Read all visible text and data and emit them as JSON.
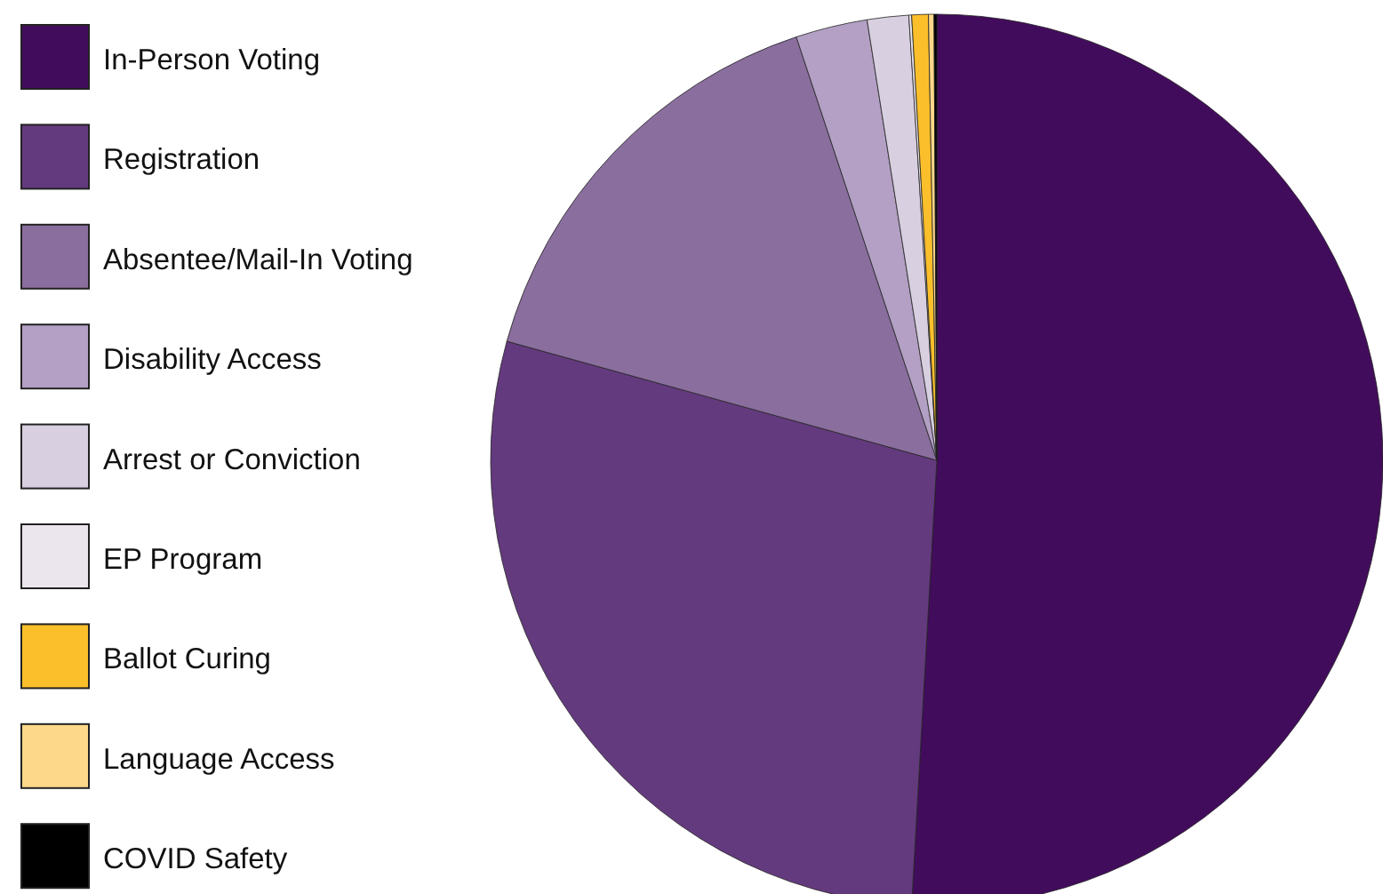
{
  "chart_data": {
    "type": "pie",
    "legend": "left",
    "categories": [
      "In-Person Voting",
      "Registration",
      "Absentee/Mail-In Voting",
      "Disability Access",
      "Arrest or Conviction",
      "EP Program",
      "Ballot Curing",
      "Language Access",
      "COVID Safety"
    ],
    "values": [
      50.9,
      28.4,
      15.6,
      2.6,
      1.5,
      0.1,
      0.6,
      0.2,
      0.1
    ],
    "colors": [
      "#420c5c",
      "#643a7e",
      "#8a6e9e",
      "#b3a0c4",
      "#d8cfe0",
      "#ebe6ee",
      "#fbbf2b",
      "#fdd88a",
      "#000000"
    ]
  }
}
